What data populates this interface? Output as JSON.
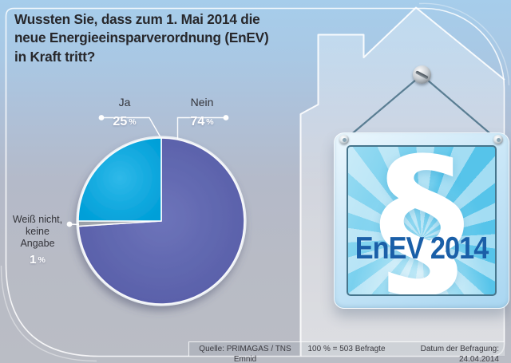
{
  "header": {
    "title": "Wussten Sie, dass zum 1. Mai 2014 die neue Energieeinsparverordnung (EnEV) in Kraft tritt?",
    "title_lines": [
      "Wussten Sie, dass zum 1. Mai 2014 die",
      "neue Energieeinsparverordnung (EnEV)",
      "in Kraft tritt?"
    ]
  },
  "chart_data": {
    "type": "pie",
    "title": "Wussten Sie, dass zum 1. Mai 2014 die neue Energieeinsparverordnung (EnEV) in Kraft tritt?",
    "unit": "%",
    "start_at": "12-oclock",
    "direction": "clockwise",
    "slices": [
      {
        "key": "nein",
        "label": "Nein",
        "value": 74,
        "color": "#565da7",
        "color_light": "#6d74ba"
      },
      {
        "key": "weiss-nicht",
        "label": "Weiß nicht, keine Angabe",
        "value": 1,
        "color": "#969ca4",
        "color_light": "#abb1b7"
      },
      {
        "key": "ja",
        "label": "Ja",
        "value": 25,
        "color": "#009fd8",
        "color_light": "#2fb9e9"
      }
    ],
    "base_note": "100 % = 503 Befragte",
    "legend_position": "callouts"
  },
  "callouts": {
    "ja": {
      "label": "Ja",
      "value": "25",
      "unit": "%"
    },
    "nein": {
      "label": "Nein",
      "value": "74",
      "unit": "%"
    },
    "weiss": {
      "line1": "Weiß nicht,",
      "line2": "keine",
      "line3": "Angabe",
      "value": "1",
      "unit": "%"
    }
  },
  "sign": {
    "symbol": "§",
    "label": "EnEV 2014"
  },
  "footer": {
    "source": "Quelle: PRIMAGAS / TNS Emnid",
    "base": "100 % = 503 Befragte",
    "date": "Datum der Befragung: 24.04.2014"
  }
}
